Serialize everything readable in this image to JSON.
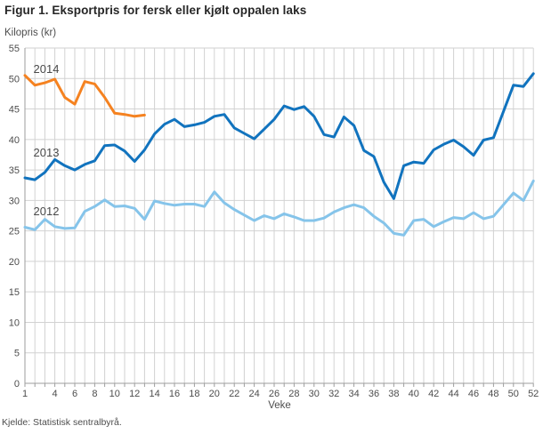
{
  "chart_data": {
    "type": "line",
    "title": "Figur 1. Eksportpris for fersk eller kjølt oppalen laks",
    "y_axis_label": "Kilopris (kr)",
    "x_axis_label": "Veke",
    "source": "Kjelde: Statistisk sentralbyrå.",
    "x_unit": "veke (week number)",
    "xlim": [
      1,
      52
    ],
    "ylim": [
      0,
      55
    ],
    "grid": true,
    "x_ticks": [
      1,
      4,
      6,
      8,
      10,
      12,
      14,
      16,
      18,
      20,
      22,
      24,
      26,
      28,
      30,
      32,
      34,
      36,
      38,
      40,
      42,
      44,
      46,
      48,
      50,
      52
    ],
    "y_ticks": [
      0,
      5,
      10,
      15,
      20,
      25,
      30,
      35,
      40,
      45,
      50,
      55
    ],
    "colors": {
      "grid": "#d2d2d2",
      "axis": "#9e9e9e",
      "tick_text": "#4d4d4d",
      "series_label_text": "#4a4a4a"
    },
    "series": [
      {
        "name": "2014",
        "color": "#F58220",
        "start_week": 1,
        "label_week": 1.85,
        "label_value": 50.9,
        "values": [
          50.5,
          48.9,
          49.3,
          49.9,
          46.9,
          45.8,
          49.5,
          49.1,
          46.9,
          44.3,
          44.1,
          43.8,
          44.0
        ]
      },
      {
        "name": "2013",
        "color": "#1173BE",
        "start_week": 1,
        "label_week": 1.85,
        "label_value": 37.2,
        "values": [
          33.7,
          33.4,
          34.6,
          36.7,
          35.7,
          35.0,
          35.9,
          36.5,
          39.0,
          39.1,
          38.1,
          36.4,
          38.3,
          40.9,
          42.5,
          43.3,
          42.1,
          42.4,
          42.8,
          43.8,
          44.1,
          41.9,
          41.0,
          40.1,
          41.7,
          43.3,
          45.5,
          44.9,
          45.4,
          43.8,
          40.8,
          40.4,
          43.7,
          42.3,
          38.2,
          37.2,
          33.0,
          30.3,
          35.7,
          36.3,
          36.1,
          38.3,
          39.2,
          39.9,
          38.8,
          37.4,
          39.9,
          40.3,
          44.6,
          48.9,
          48.7,
          50.8
        ]
      },
      {
        "name": "2012",
        "color": "#85C4EA",
        "start_week": 1,
        "label_week": 1.85,
        "label_value": 27.6,
        "values": [
          25.6,
          25.2,
          26.9,
          25.7,
          25.4,
          25.5,
          28.2,
          29.0,
          30.1,
          29.0,
          29.1,
          28.7,
          26.9,
          29.9,
          29.5,
          29.2,
          29.4,
          29.4,
          29.0,
          31.4,
          29.6,
          28.5,
          27.6,
          26.7,
          27.5,
          27.0,
          27.8,
          27.3,
          26.7,
          26.7,
          27.1,
          28.1,
          28.8,
          29.3,
          28.8,
          27.4,
          26.3,
          24.6,
          24.3,
          26.7,
          26.9,
          25.7,
          26.5,
          27.2,
          27.0,
          28.0,
          27.0,
          27.4,
          29.3,
          31.2,
          30.0,
          33.2
        ]
      }
    ]
  }
}
